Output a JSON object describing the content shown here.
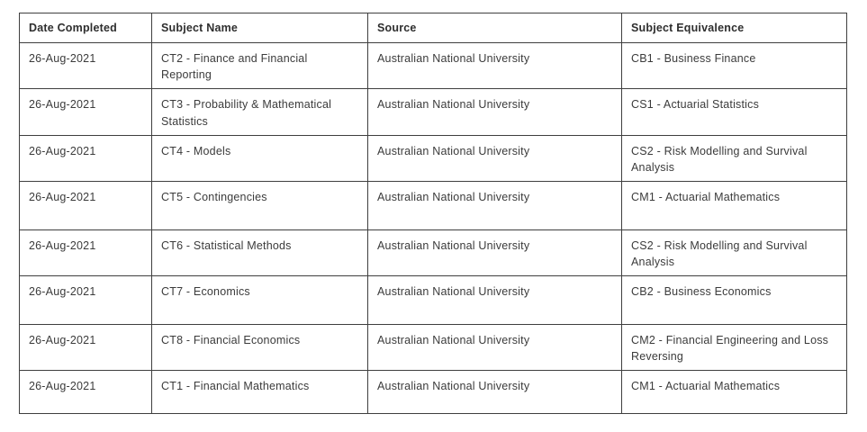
{
  "table": {
    "headers": [
      "Date Completed",
      "Subject Name",
      "Source",
      "Subject Equivalence"
    ],
    "rows": [
      {
        "date": "26-Aug-2021",
        "subject": "CT2 - Finance and Financial Reporting",
        "source": "Australian National University",
        "equivalence": "CB1 - Business Finance"
      },
      {
        "date": "26-Aug-2021",
        "subject": "CT3 - Probability & Mathematical Statistics",
        "source": "Australian National University",
        "equivalence": "CS1 - Actuarial Statistics"
      },
      {
        "date": "26-Aug-2021",
        "subject": "CT4 - Models",
        "source": "Australian National University",
        "equivalence": "CS2 - Risk Modelling and Survival Analysis"
      },
      {
        "date": "26-Aug-2021",
        "subject": "CT5 - Contingencies",
        "source": "Australian National University",
        "equivalence": "CM1 - Actuarial Mathematics"
      },
      {
        "date": "26-Aug-2021",
        "subject": "CT6 - Statistical Methods",
        "source": "Australian National University",
        "equivalence": "CS2 - Risk Modelling and Survival Analysis"
      },
      {
        "date": "26-Aug-2021",
        "subject": "CT7 - Economics",
        "source": "Australian National University",
        "equivalence": "CB2 - Business Economics"
      },
      {
        "date": "26-Aug-2021",
        "subject": "CT8 - Financial Economics",
        "source": "Australian National University",
        "equivalence": "CM2 - Financial Engineering and Loss Reversing"
      },
      {
        "date": "26-Aug-2021",
        "subject": "CT1 - Financial Mathematics",
        "source": "Australian National University",
        "equivalence": "CM1 - Actuarial Mathematics"
      }
    ]
  }
}
